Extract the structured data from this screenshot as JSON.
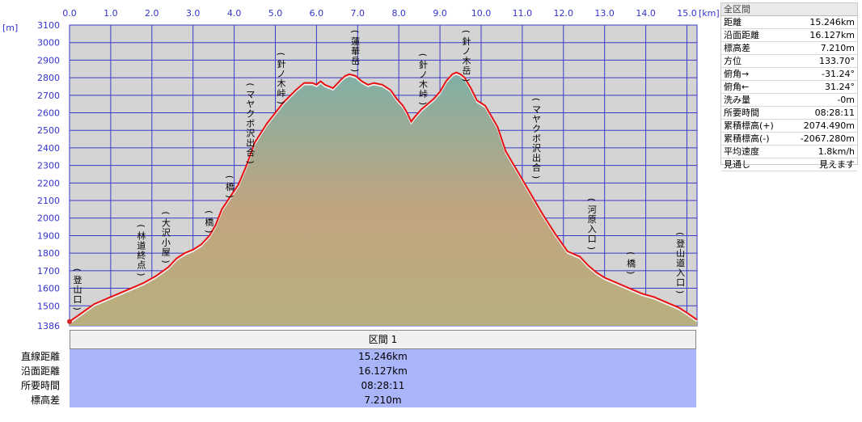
{
  "chart_data": {
    "type": "area",
    "x_unit": "[km]",
    "y_unit": "[m]",
    "xlim": [
      0,
      15.246
    ],
    "ylim": [
      1386,
      3100
    ],
    "x_ticks": [
      "0.0",
      "1.0",
      "2.0",
      "3.0",
      "4.0",
      "5.0",
      "6.0",
      "7.0",
      "8.0",
      "9.0",
      "10.0",
      "11.0",
      "12.0",
      "13.0",
      "14.0",
      "15.0"
    ],
    "y_ticks": [
      "1386",
      "1500",
      "1600",
      "1700",
      "1800",
      "1900",
      "2000",
      "2100",
      "2200",
      "2300",
      "2400",
      "2500",
      "2600",
      "2700",
      "2800",
      "2900",
      "3000",
      "3100"
    ],
    "colors": {
      "line": "#e81010",
      "grid": "#3a3ac8",
      "plot_bg": "#d4d4d4",
      "fill_top": "#7fb0a6",
      "fill_mid": "#c2a47e",
      "fill_bottom": "#b7b07e"
    },
    "x": [
      0.0,
      0.3,
      0.6,
      0.9,
      1.2,
      1.5,
      1.8,
      2.1,
      2.4,
      2.6,
      2.8,
      3.0,
      3.2,
      3.4,
      3.55,
      3.7,
      3.9,
      4.1,
      4.3,
      4.5,
      4.8,
      5.0,
      5.2,
      5.5,
      5.7,
      5.9,
      6.0,
      6.1,
      6.2,
      6.4,
      6.6,
      6.7,
      6.8,
      6.95,
      7.1,
      7.25,
      7.4,
      7.6,
      7.8,
      7.95,
      8.1,
      8.2,
      8.3,
      8.4,
      8.55,
      8.7,
      8.85,
      9.0,
      9.15,
      9.3,
      9.4,
      9.5,
      9.6,
      9.75,
      9.9,
      10.1,
      10.4,
      10.6,
      10.9,
      11.2,
      11.5,
      11.8,
      12.1,
      12.4,
      12.6,
      12.8,
      13.0,
      13.3,
      13.6,
      13.9,
      14.2,
      14.5,
      14.8,
      15.0,
      15.246
    ],
    "y": [
      1410,
      1460,
      1510,
      1540,
      1570,
      1600,
      1630,
      1670,
      1720,
      1770,
      1800,
      1820,
      1850,
      1900,
      1960,
      2050,
      2120,
      2190,
      2300,
      2430,
      2540,
      2600,
      2660,
      2730,
      2770,
      2770,
      2760,
      2780,
      2760,
      2740,
      2790,
      2810,
      2820,
      2810,
      2780,
      2760,
      2770,
      2760,
      2730,
      2680,
      2640,
      2600,
      2550,
      2580,
      2620,
      2650,
      2680,
      2720,
      2780,
      2820,
      2830,
      2820,
      2800,
      2740,
      2670,
      2640,
      2520,
      2380,
      2260,
      2140,
      2020,
      1910,
      1810,
      1780,
      1730,
      1690,
      1660,
      1630,
      1600,
      1570,
      1550,
      1520,
      1490,
      1460,
      1420
    ],
    "poi": [
      {
        "label": "登山口",
        "x": 0.0
      },
      {
        "label": "林道終点",
        "x": 1.55
      },
      {
        "label": "大沢小屋",
        "x": 2.15
      },
      {
        "label": "橋",
        "x": 3.2
      },
      {
        "label": "橋",
        "x": 3.7
      },
      {
        "label": "マヤクボ沢出合",
        "x": 4.2
      },
      {
        "label": "針ノ木峠",
        "x": 4.95
      },
      {
        "label": "蓮華岳",
        "x": 6.75
      },
      {
        "label": "針ノ木峠",
        "x": 8.4
      },
      {
        "label": "針ノ木岳",
        "x": 9.45
      },
      {
        "label": "マヤクボ沢出合",
        "x": 11.15
      },
      {
        "label": "河原入口",
        "x": 12.5
      },
      {
        "label": "橋",
        "x": 13.45
      },
      {
        "label": "登山道入口",
        "x": 14.65
      }
    ]
  },
  "summary_panel": {
    "title": "全区間",
    "rows": [
      {
        "label": "距離",
        "value": "15.246km"
      },
      {
        "label": "沿面距離",
        "value": "16.127km"
      },
      {
        "label": "標高差",
        "value": "7.210m"
      },
      {
        "label": "方位",
        "value": "133.70°"
      },
      {
        "label": "俯角→",
        "value": "-31.24°"
      },
      {
        "label": "俯角←",
        "value": "31.24°"
      },
      {
        "label": "洗み量",
        "value": "-0m"
      },
      {
        "label": "所要時間",
        "value": "08:28:11"
      },
      {
        "label": "累積標高(+)",
        "value": "2074.490m"
      },
      {
        "label": "累積標高(-)",
        "value": "-2067.280m"
      },
      {
        "label": "平均速度",
        "value": "1.8km/h"
      },
      {
        "label": "見通し",
        "value": "見えます"
      }
    ]
  },
  "segment_table": {
    "header": "区間 1",
    "rows": [
      {
        "label": "直線距離",
        "value": "15.246km"
      },
      {
        "label": "沿面距離",
        "value": "16.127km"
      },
      {
        "label": "所要時間",
        "value": "08:28:11"
      },
      {
        "label": "標高差",
        "value": "7.210m"
      }
    ]
  }
}
